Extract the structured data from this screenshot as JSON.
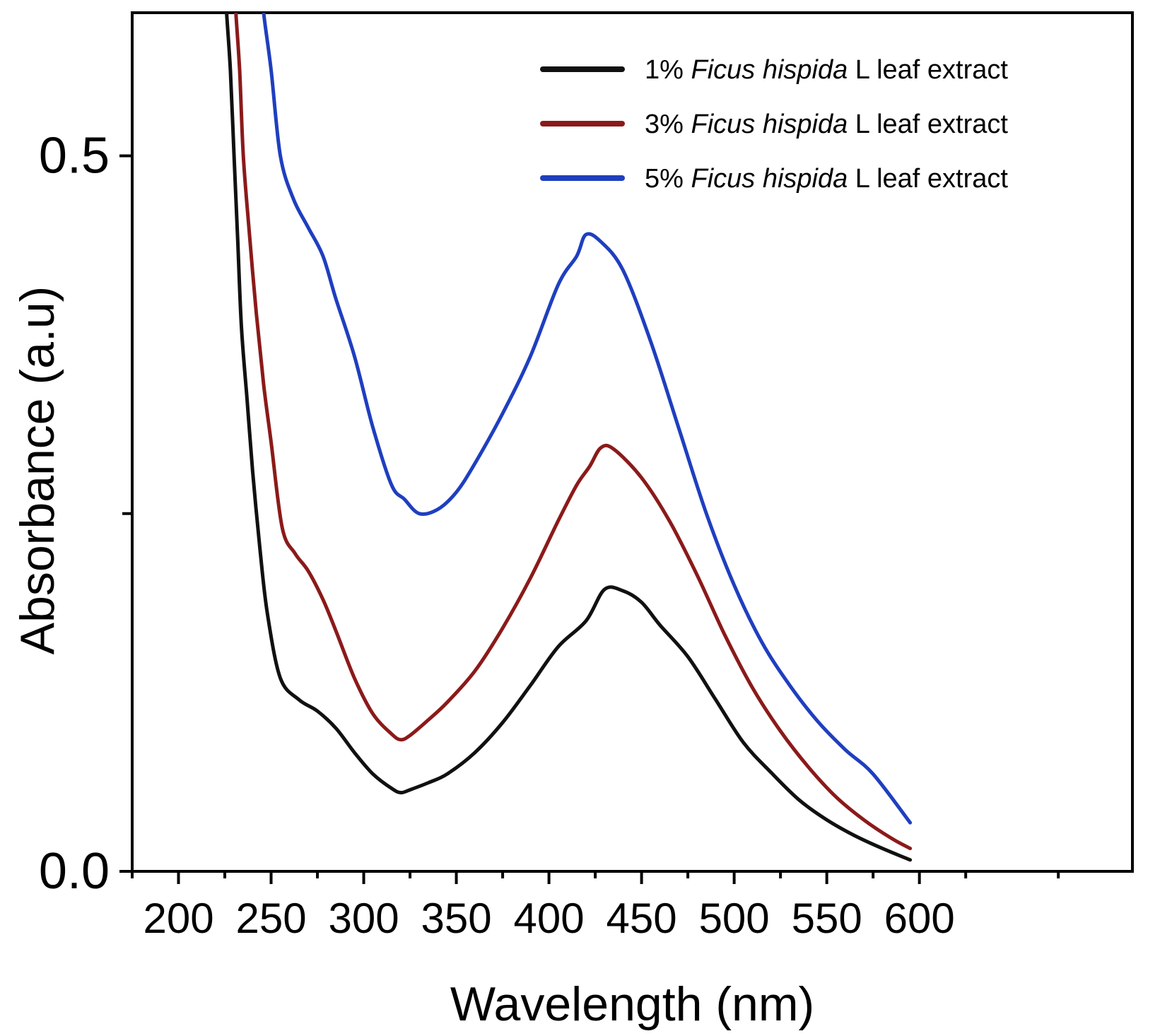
{
  "chart_data": {
    "type": "line",
    "title": "",
    "xlabel": "Wavelength (nm)",
    "ylabel": "Absorbance (a.u)",
    "xlim": [
      175,
      715
    ],
    "ylim": [
      0,
      0.6
    ],
    "xticks": [
      200,
      250,
      300,
      350,
      400,
      450,
      500,
      550,
      600
    ],
    "yticks_labeled": [
      0.0,
      0.5
    ],
    "yticks_unlabeled": [
      0.25
    ],
    "ytick_labels": [
      "0.0",
      "0.5"
    ],
    "grid": false,
    "legend_position": "top-right",
    "series": [
      {
        "name": "1% Ficus hispida L leaf extract",
        "legend_prefix": "1% ",
        "legend_italic": "Ficus hispida",
        "legend_suffix": " L leaf extract",
        "color": "#111111",
        "x": [
          226,
          228,
          230,
          232,
          234,
          237,
          240,
          244,
          248,
          255,
          265,
          275,
          285,
          295,
          305,
          315,
          320,
          325,
          335,
          345,
          360,
          375,
          390,
          405,
          420,
          430,
          440,
          450,
          460,
          475,
          490,
          505,
          520,
          535,
          550,
          565,
          580,
          595
        ],
        "y": [
          0.6,
          0.56,
          0.5,
          0.44,
          0.38,
          0.33,
          0.28,
          0.225,
          0.18,
          0.135,
          0.12,
          0.112,
          0.1,
          0.083,
          0.068,
          0.058,
          0.055,
          0.057,
          0.062,
          0.068,
          0.083,
          0.104,
          0.13,
          0.157,
          0.175,
          0.197,
          0.196,
          0.188,
          0.172,
          0.15,
          0.12,
          0.09,
          0.069,
          0.05,
          0.036,
          0.025,
          0.016,
          0.008
        ]
      },
      {
        "name": "3% Ficus hispida L leaf extract",
        "legend_prefix": "3% ",
        "legend_italic": "Ficus hispida",
        "legend_suffix": " L leaf extract",
        "color": "#8b1a1a",
        "x": [
          231,
          233,
          235,
          238,
          242,
          246,
          250,
          256,
          263,
          270,
          278,
          285,
          295,
          305,
          315,
          320,
          325,
          335,
          345,
          360,
          375,
          390,
          405,
          415,
          422,
          428,
          435,
          450,
          465,
          480,
          495,
          510,
          525,
          540,
          555,
          570,
          585,
          595
        ],
        "y": [
          0.6,
          0.56,
          0.5,
          0.45,
          0.39,
          0.34,
          0.3,
          0.24,
          0.222,
          0.21,
          0.19,
          0.168,
          0.135,
          0.11,
          0.096,
          0.092,
          0.095,
          0.106,
          0.118,
          0.14,
          0.17,
          0.205,
          0.245,
          0.27,
          0.283,
          0.296,
          0.295,
          0.275,
          0.245,
          0.207,
          0.165,
          0.128,
          0.098,
          0.073,
          0.052,
          0.036,
          0.023,
          0.016
        ]
      },
      {
        "name": "5% Ficus hispida L leaf extract",
        "legend_prefix": "5% ",
        "legend_italic": "Ficus hispida",
        "legend_suffix": " L leaf extract",
        "color": "#1f3fbf",
        "x": [
          246,
          250,
          255,
          262,
          270,
          278,
          285,
          295,
          305,
          315,
          322,
          330,
          340,
          350,
          360,
          375,
          390,
          405,
          415,
          420,
          428,
          440,
          455,
          470,
          485,
          500,
          515,
          530,
          545,
          560,
          575,
          595
        ],
        "y": [
          0.6,
          0.56,
          0.5,
          0.47,
          0.45,
          0.43,
          0.4,
          0.36,
          0.31,
          0.27,
          0.26,
          0.25,
          0.253,
          0.265,
          0.285,
          0.32,
          0.36,
          0.41,
          0.43,
          0.445,
          0.44,
          0.42,
          0.37,
          0.31,
          0.25,
          0.2,
          0.16,
          0.13,
          0.105,
          0.085,
          0.068,
          0.034
        ]
      }
    ]
  }
}
